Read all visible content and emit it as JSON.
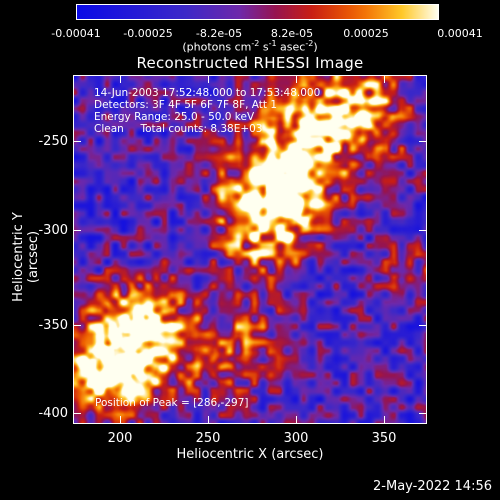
{
  "colorbar": {
    "ticks": [
      "-0.00041",
      "-0.00025",
      "-8.2e-05",
      "8.2e-05",
      "0.00025",
      "0.00041"
    ],
    "units_prefix": "(photons cm",
    "units_sup1": "-2",
    "units_mid1": " s",
    "units_sup2": "-1",
    "units_mid2": " asec",
    "units_sup3": "-2",
    "units_suffix": ")"
  },
  "title": "Reconstructed RHESSI Image",
  "info": {
    "line1": "14-Jun-2003 17:52:48.000 to 17:53:48.000",
    "line2": "Detectors: 3F 4F 5F 6F 7F 8F, Att 1",
    "line3": "Energy Range: 25.0 - 50.0 keV",
    "line4": "Clean     Total counts: 8.38E+03"
  },
  "peak": "Position of Peak = [286,-297]",
  "axes": {
    "xlabel": "Heliocentric X (arcsec)",
    "ylabel": "Heliocentric Y (arcsec)",
    "xticks": [
      "200",
      "250",
      "300",
      "350"
    ],
    "yticks": [
      "-250",
      "-300",
      "-350",
      "-400"
    ],
    "xlim": [
      176,
      368
    ],
    "ylim": [
      -411,
      -222
    ]
  },
  "timestamp": "2-May-2022 14:56",
  "colors": {
    "background": "#000000",
    "foreground": "#ffffff"
  }
}
